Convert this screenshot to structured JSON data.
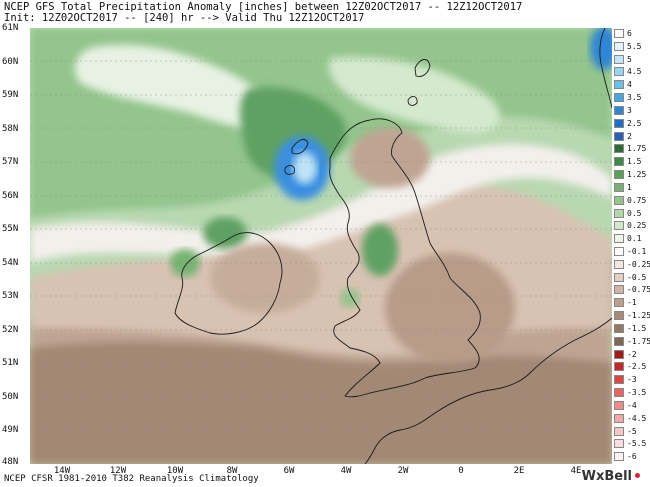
{
  "header": {
    "title": "NCEP GFS Total Precipitation Anomaly [inches] between 12Z02OCT2017 -- 12Z12OCT2017",
    "subtitle": "Init: 12Z02OCT2017 -- [240] hr --> Valid Thu 12Z12OCT2017"
  },
  "axes": {
    "y_labels": [
      "61N",
      "60N",
      "59N",
      "58N",
      "57N",
      "56N",
      "55N",
      "54N",
      "53N",
      "52N",
      "51N",
      "50N",
      "49N",
      "48N"
    ],
    "x_labels": [
      "14W",
      "12W",
      "10W",
      "8W",
      "6W",
      "4W",
      "2W",
      "0",
      "2E",
      "4E"
    ]
  },
  "legend": {
    "items": [
      {
        "label": "6",
        "color": "#ffffff"
      },
      {
        "label": "5.5",
        "color": "#e3f3fb"
      },
      {
        "label": "5",
        "color": "#c2e6f5"
      },
      {
        "label": "4.5",
        "color": "#98d4ee"
      },
      {
        "label": "4",
        "color": "#6ebfe6"
      },
      {
        "label": "3.5",
        "color": "#4aa6de"
      },
      {
        "label": "3",
        "color": "#2e86d4"
      },
      {
        "label": "2.5",
        "color": "#1f6ec9"
      },
      {
        "label": "2",
        "color": "#2a5fb8"
      },
      {
        "label": "1.75",
        "color": "#2e6b3a"
      },
      {
        "label": "1.5",
        "color": "#3f8a48"
      },
      {
        "label": "1.25",
        "color": "#5aa05a"
      },
      {
        "label": "1",
        "color": "#77b272"
      },
      {
        "label": "0.75",
        "color": "#96c48c"
      },
      {
        "label": "0.5",
        "color": "#b5d6aa"
      },
      {
        "label": "0.25",
        "color": "#d3e8c9"
      },
      {
        "label": "0.1",
        "color": "#edf6e8"
      },
      {
        "label": "-0.1",
        "color": "#ffffff"
      },
      {
        "label": "-0.25",
        "color": "#f3e8e1"
      },
      {
        "label": "-0.5",
        "color": "#e4cfc3"
      },
      {
        "label": "-0.75",
        "color": "#d1b6a6"
      },
      {
        "label": "-1",
        "color": "#bd9f8d"
      },
      {
        "label": "-1.25",
        "color": "#a88a78"
      },
      {
        "label": "-1.5",
        "color": "#957865"
      },
      {
        "label": "-1.75",
        "color": "#7f6554"
      },
      {
        "label": "-2",
        "color": "#a01c1c"
      },
      {
        "label": "-2.5",
        "color": "#c42828"
      },
      {
        "label": "-3",
        "color": "#d94444"
      },
      {
        "label": "-3.5",
        "color": "#e66666"
      },
      {
        "label": "-4",
        "color": "#ee8a8a"
      },
      {
        "label": "-4.5",
        "color": "#f3a9a9"
      },
      {
        "label": "-5",
        "color": "#f7c6c6"
      },
      {
        "label": "-5.5",
        "color": "#fadede"
      },
      {
        "label": "-6",
        "color": "#fdf0f0"
      }
    ]
  },
  "footer": {
    "text": "NCEP CFSR 1981-2010 T382 Reanalysis Climatology",
    "brand": "WxBell"
  },
  "colors": {
    "sea_green_light": "#c7e3c2",
    "sea_green": "#93c58c",
    "sea_green_dark": "#5fa162",
    "land_brown_light": "#d8c2b2",
    "land_brown": "#bfa493",
    "land_brown_dark": "#9a7e6c",
    "wet_blue": "#3b8fe0",
    "coast": "#1a1a1a"
  }
}
